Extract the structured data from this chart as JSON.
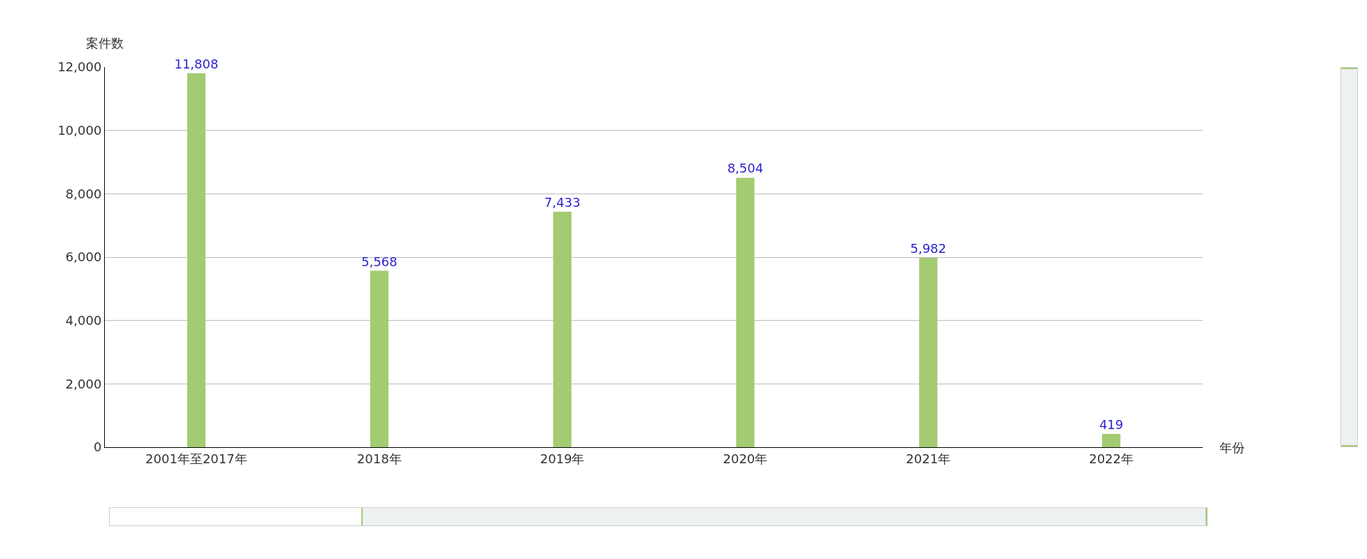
{
  "chart_data": {
    "type": "bar",
    "xlabel": "年份",
    "ylabel": "案件数",
    "categories": [
      "2001年至2017年",
      "2018年",
      "2019年",
      "2020年",
      "2021年",
      "2022年"
    ],
    "values": [
      11808,
      5568,
      7433,
      8504,
      5982,
      419
    ],
    "color": "#a3cb72",
    "ylim": [
      0,
      12000
    ],
    "yticks": [
      0,
      {
        "value": 2000,
        "label": "2,000"
      },
      {
        "value": 4000,
        "label": "4,000"
      },
      {
        "value": 6000,
        "label": "6,000"
      },
      {
        "value": 8000,
        "label": "8,000"
      },
      {
        "value": 10000,
        "label": "10,000"
      },
      {
        "value": 12000,
        "label": "12,000"
      }
    ],
    "value_labels": [
      "11,808",
      "5,568",
      "7,433",
      "8,504",
      "5,982",
      "419"
    ],
    "grid": "y",
    "legend": false
  }
}
